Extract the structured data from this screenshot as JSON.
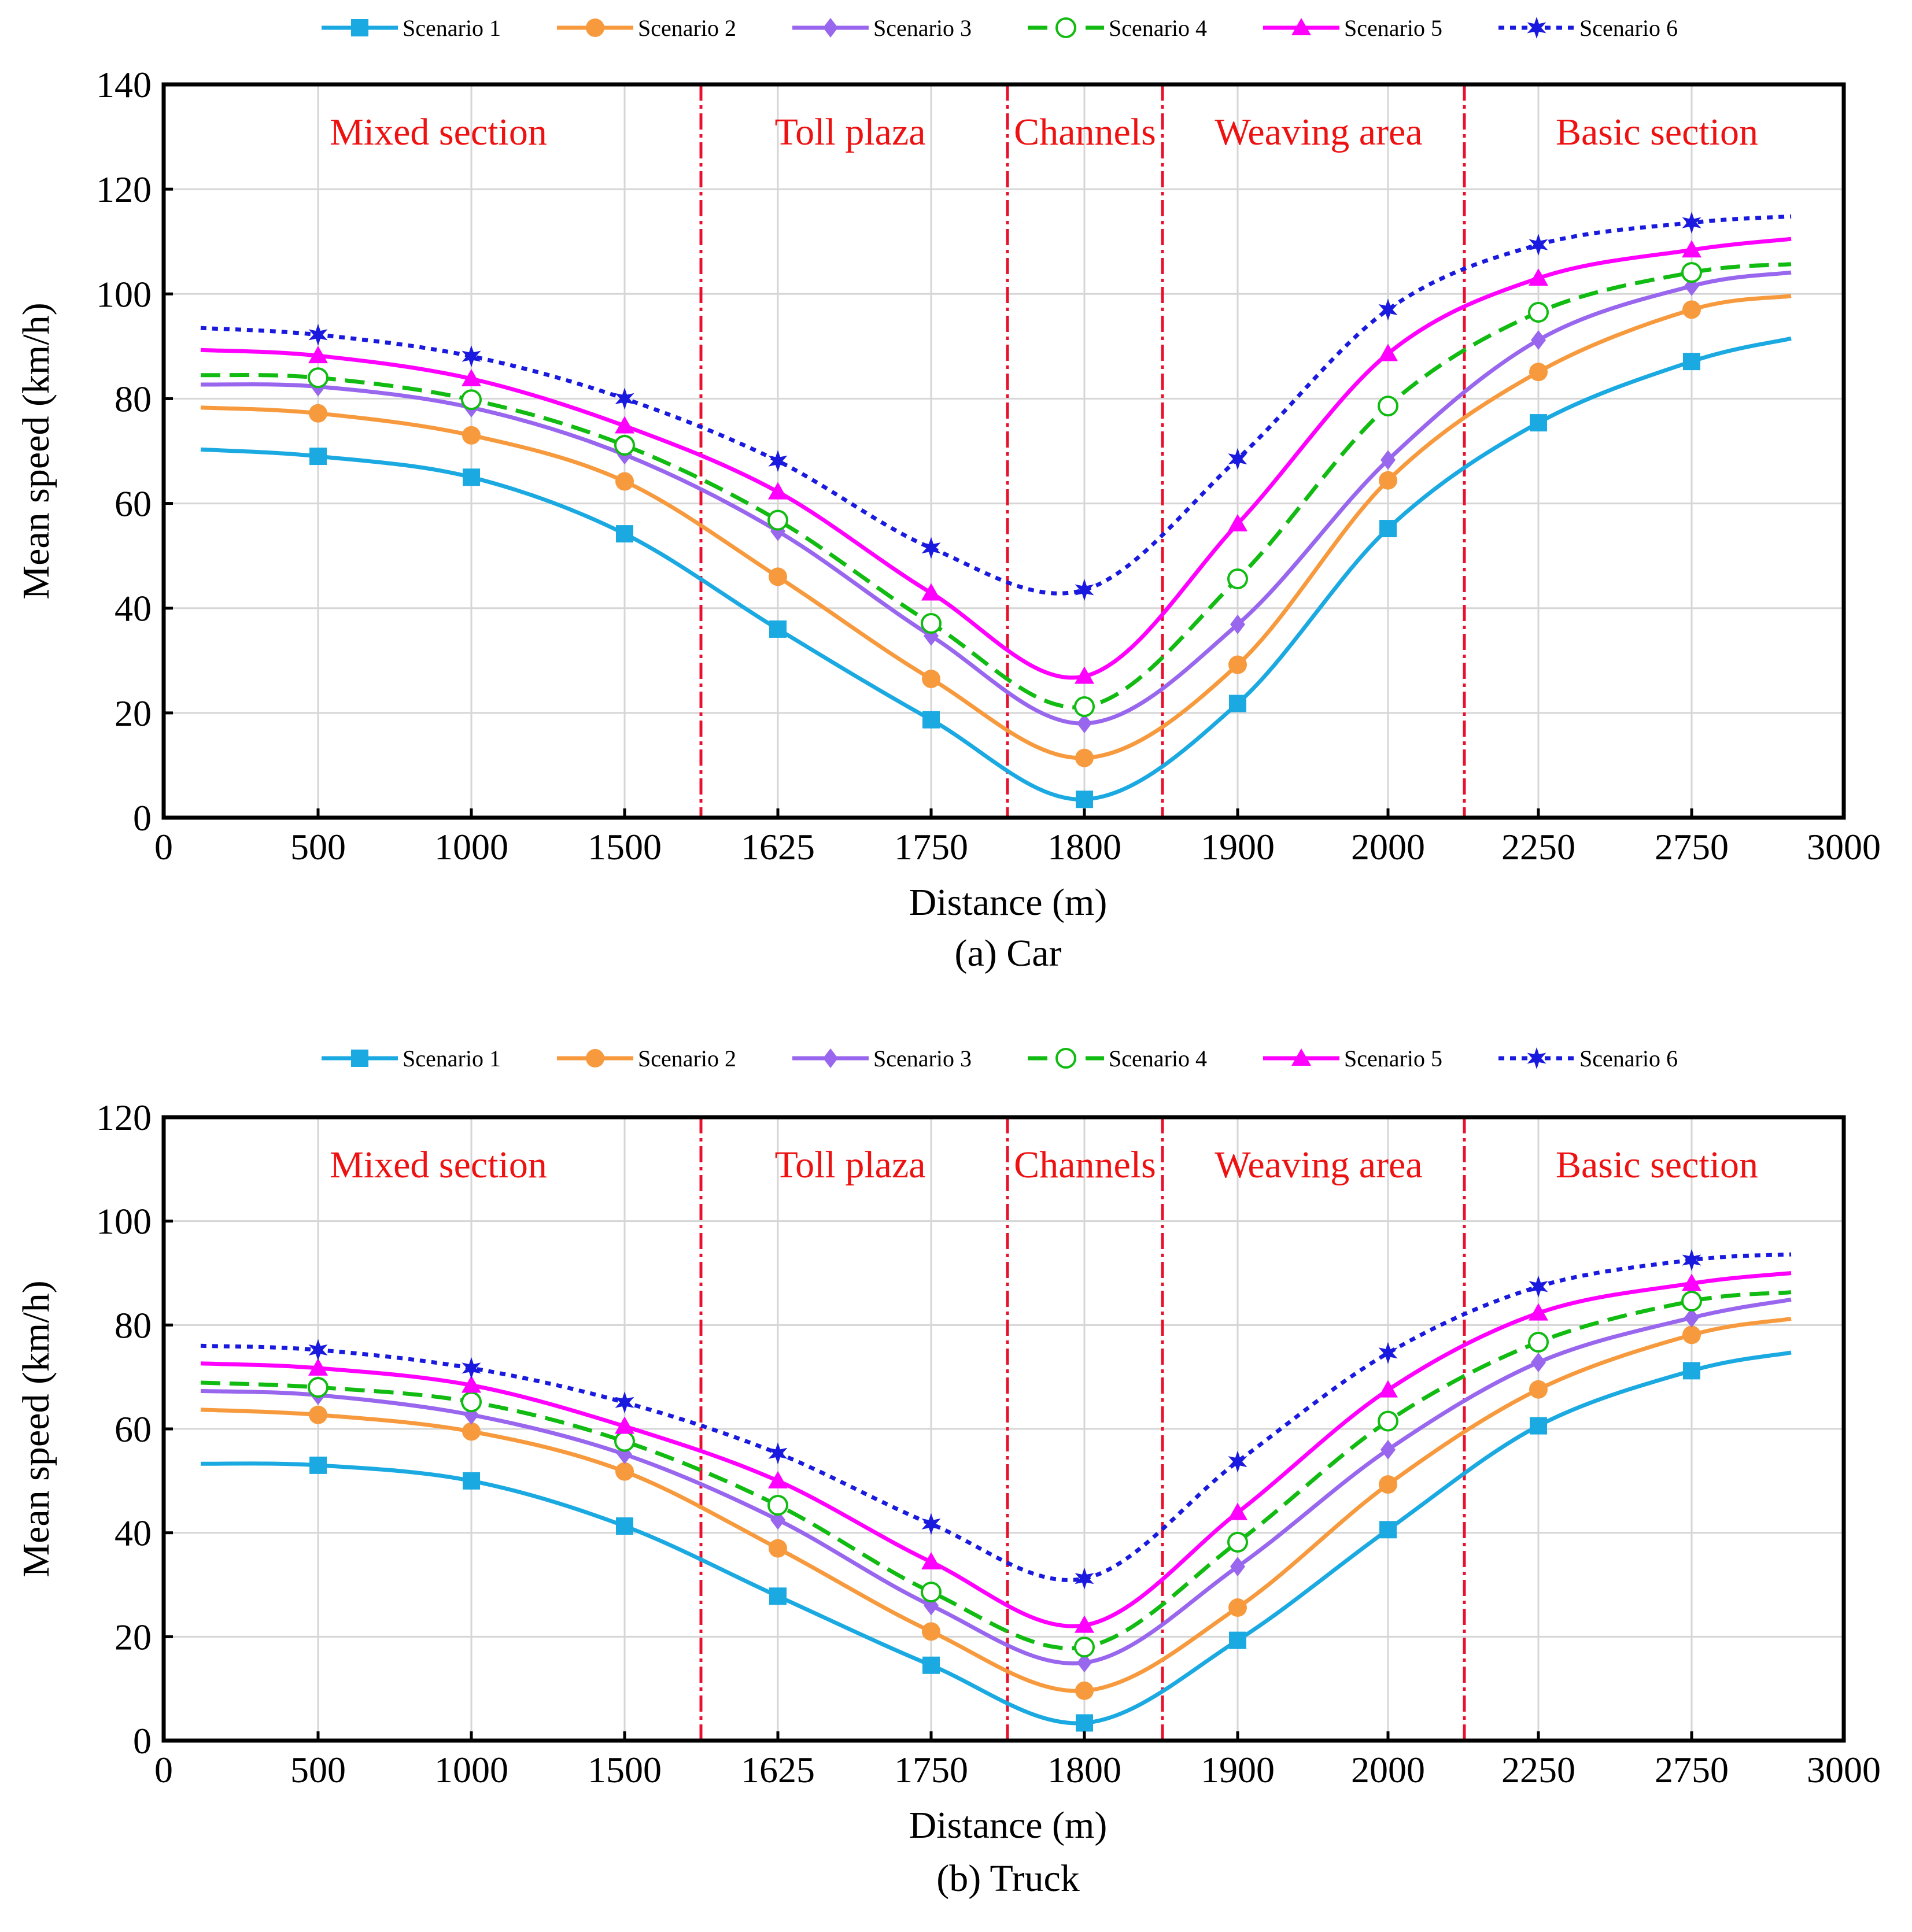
{
  "chart_data": [
    {
      "type": "line",
      "caption": "(a) Car",
      "xlabel": "Distance (m)",
      "ylabel": "Mean speed (km/h)",
      "ylim": [
        0,
        140
      ],
      "yticks": [
        "0",
        "20",
        "40",
        "60",
        "80",
        "100",
        "120",
        "140"
      ],
      "xticks": [
        "0",
        "500",
        "1000",
        "1500",
        "1625",
        "1750",
        "1800",
        "1900",
        "2000",
        "2250",
        "2750",
        "3000"
      ],
      "grid": true,
      "legend": "top",
      "categories": [
        "500",
        "1000",
        "1500",
        "1625",
        "1750",
        "1800",
        "1900",
        "2000",
        "2250",
        "2750"
      ],
      "sections": [
        {
          "label": "Mixed section"
        },
        {
          "label": "Toll plaza"
        },
        {
          "label": "Channels"
        },
        {
          "label": "Weaving area"
        },
        {
          "label": "Basic section"
        }
      ],
      "series": [
        {
          "name": "Scenario 1",
          "color": "#1ba9e1",
          "marker": "square",
          "dash": "solid",
          "start": 70.3,
          "end": 91.5,
          "values": [
            69,
            65,
            54.2,
            36,
            18.7,
            3.5,
            21.8,
            55.2,
            75.4,
            87.1
          ]
        },
        {
          "name": "Scenario 2",
          "color": "#f79a3e",
          "marker": "circle",
          "dash": "solid",
          "start": 78.3,
          "end": 99.6,
          "values": [
            77.2,
            73,
            64.2,
            46,
            26.5,
            11.4,
            29.2,
            64.4,
            85.1,
            97
          ]
        },
        {
          "name": "Scenario 3",
          "color": "#9966ee",
          "marker": "diamond",
          "dash": "solid",
          "start": 82.7,
          "end": 104.1,
          "values": [
            82.3,
            78.3,
            69.3,
            54.7,
            34.7,
            18,
            36.9,
            68.3,
            91.2,
            101.5
          ]
        },
        {
          "name": "Scenario 4",
          "color": "#11bb11",
          "marker": "open-circle",
          "dash": "dash",
          "start": 84.5,
          "end": 105.7,
          "values": [
            84,
            79.8,
            71.1,
            56.8,
            37.1,
            21.2,
            45.6,
            78.6,
            96.5,
            104.1
          ]
        },
        {
          "name": "Scenario 5",
          "color": "#ff00ff",
          "marker": "triangle",
          "dash": "solid",
          "start": 89.3,
          "end": 110.5,
          "values": [
            88.2,
            83.8,
            74.8,
            62.2,
            42.9,
            27,
            56.1,
            88.6,
            103,
            108.4
          ]
        },
        {
          "name": "Scenario 6",
          "color": "#1a1adf",
          "marker": "star",
          "dash": "dot",
          "start": 93.5,
          "end": 114.8,
          "values": [
            92.2,
            88.1,
            80,
            68.1,
            51.5,
            43.5,
            68.5,
            97,
            109.4,
            113.6
          ]
        }
      ]
    },
    {
      "type": "line",
      "caption": "(b) Truck",
      "xlabel": "Distance (m)",
      "ylabel": "Mean speed (km/h)",
      "ylim": [
        0,
        120
      ],
      "yticks": [
        "0",
        "20",
        "40",
        "60",
        "80",
        "100",
        "120"
      ],
      "xticks": [
        "0",
        "500",
        "1000",
        "1500",
        "1625",
        "1750",
        "1800",
        "1900",
        "2000",
        "2250",
        "2750",
        "3000"
      ],
      "grid": true,
      "legend": "top",
      "categories": [
        "500",
        "1000",
        "1500",
        "1625",
        "1750",
        "1800",
        "1900",
        "2000",
        "2250",
        "2750"
      ],
      "sections": [
        {
          "label": "Mixed section"
        },
        {
          "label": "Toll plaza"
        },
        {
          "label": "Channels"
        },
        {
          "label": "Weaving area"
        },
        {
          "label": "Basic section"
        }
      ],
      "series": [
        {
          "name": "Scenario 1",
          "color": "#1ba9e1",
          "marker": "square",
          "dash": "solid",
          "start": 53.3,
          "end": 74.7,
          "values": [
            53,
            50,
            41.3,
            27.8,
            14.5,
            3.4,
            19.3,
            40.6,
            60.6,
            71.2
          ]
        },
        {
          "name": "Scenario 2",
          "color": "#f79a3e",
          "marker": "circle",
          "dash": "solid",
          "start": 63.7,
          "end": 81.2,
          "values": [
            62.7,
            59.5,
            51.8,
            37,
            21,
            9.6,
            25.6,
            49.3,
            67.6,
            78.1
          ]
        },
        {
          "name": "Scenario 3",
          "color": "#9966ee",
          "marker": "diamond",
          "dash": "solid",
          "start": 67.3,
          "end": 84.9,
          "values": [
            66.5,
            62.7,
            55.1,
            42.5,
            26,
            15,
            33.5,
            56,
            72.8,
            81.4
          ]
        },
        {
          "name": "Scenario 4",
          "color": "#11bb11",
          "marker": "open-circle",
          "dash": "dash",
          "start": 68.9,
          "end": 86.3,
          "values": [
            68,
            65.2,
            57.6,
            45.3,
            28.6,
            18,
            38.2,
            61.5,
            76.7,
            84.6
          ]
        },
        {
          "name": "Scenario 5",
          "color": "#ff00ff",
          "marker": "triangle",
          "dash": "solid",
          "start": 72.6,
          "end": 90,
          "values": [
            71.7,
            68.4,
            60.5,
            50,
            34.4,
            22.2,
            43.9,
            67.5,
            82.3,
            88
          ]
        },
        {
          "name": "Scenario 6",
          "color": "#1a1adf",
          "marker": "star",
          "dash": "dot",
          "start": 76,
          "end": 93.6,
          "values": [
            75.2,
            71.7,
            65.1,
            55.3,
            41.7,
            31.2,
            53.7,
            74.6,
            87.4,
            92.5
          ]
        }
      ]
    }
  ]
}
